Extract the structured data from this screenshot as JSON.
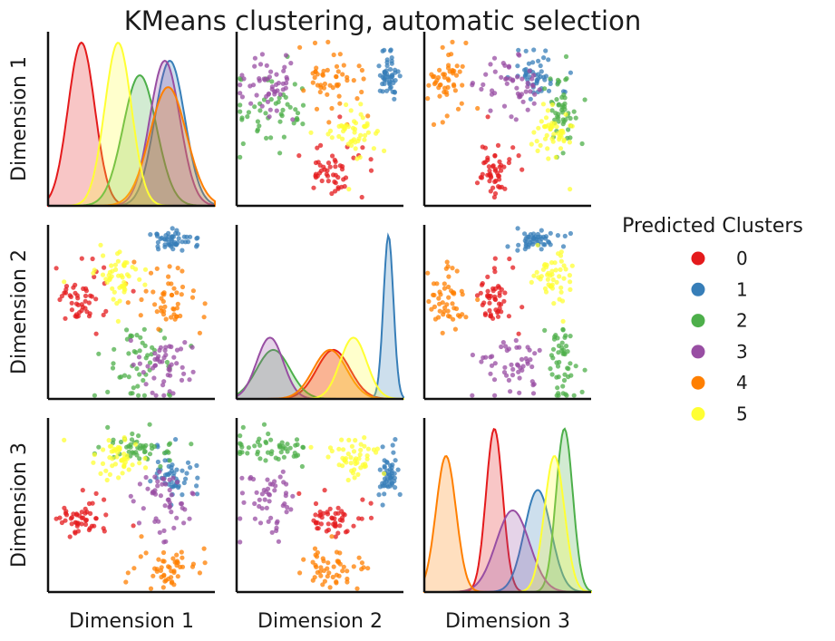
{
  "chart_data": {
    "type": "scatter",
    "subtype": "pairplot",
    "title": "KMeans clustering, automatic selection",
    "variables": [
      "Dimension 1",
      "Dimension 2",
      "Dimension 3"
    ],
    "diagonal": "kde",
    "grid": false,
    "legend": {
      "title": "Predicted Clusters",
      "placement": "right",
      "entries": [
        "0",
        "1",
        "2",
        "3",
        "4",
        "5"
      ]
    },
    "colors": {
      "0": "#e41a1c",
      "1": "#377eb8",
      "2": "#4daf4a",
      "3": "#984ea3",
      "4": "#ff7f00",
      "5": "#ffff33"
    },
    "clusters": [
      {
        "name": "0",
        "n": 50,
        "mean": [
          0.2,
          0.58,
          0.42
        ],
        "sd": [
          0.08,
          0.1,
          0.05
        ]
      },
      {
        "name": "1",
        "n": 50,
        "mean": [
          0.73,
          0.91,
          0.68
        ],
        "sd": [
          0.09,
          0.03,
          0.08
        ]
      },
      {
        "name": "2",
        "n": 50,
        "mean": [
          0.55,
          0.22,
          0.84
        ],
        "sd": [
          0.1,
          0.1,
          0.05
        ]
      },
      {
        "name": "3",
        "n": 50,
        "mean": [
          0.7,
          0.2,
          0.53
        ],
        "sd": [
          0.09,
          0.08,
          0.1
        ]
      },
      {
        "name": "4",
        "n": 50,
        "mean": [
          0.72,
          0.56,
          0.13
        ],
        "sd": [
          0.11,
          0.1,
          0.06
        ]
      },
      {
        "name": "5",
        "n": 50,
        "mean": [
          0.42,
          0.7,
          0.78
        ],
        "sd": [
          0.08,
          0.08,
          0.06
        ]
      }
    ]
  }
}
